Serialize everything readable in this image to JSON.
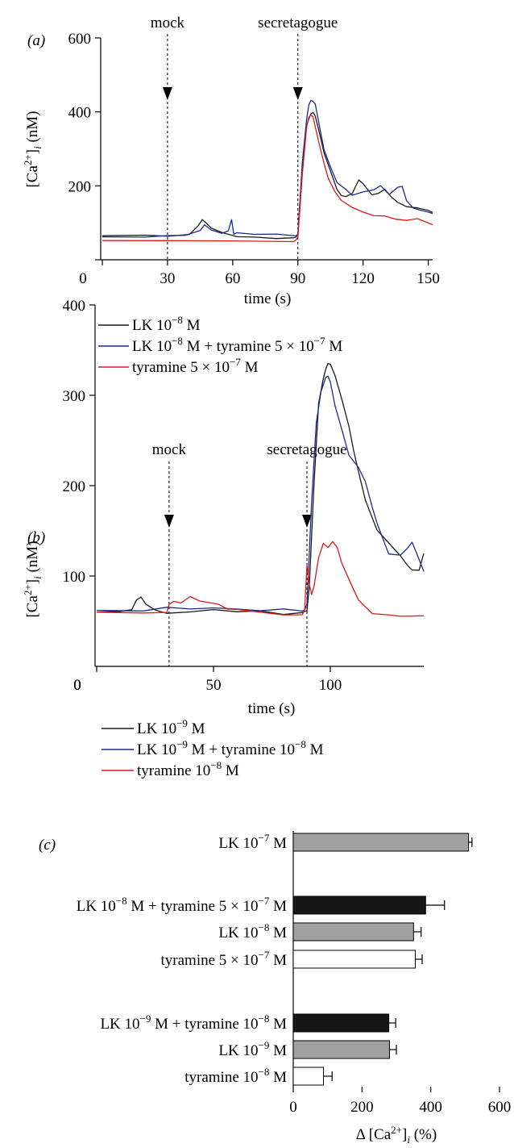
{
  "chart_data": [
    {
      "panel": "(a)",
      "type": "line",
      "xlabel": "time (s)",
      "ylabel_base": "[Ca",
      "ylabel_sup": "2+",
      "ylabel_sub": "i",
      "ylabel_unit": "(nM)",
      "xlim": [
        0,
        152
      ],
      "ylim": [
        0,
        600
      ],
      "xticks": [
        0,
        30,
        60,
        90,
        120,
        150
      ],
      "yticks": [
        0,
        200,
        400,
        600
      ],
      "annotations": [
        {
          "label": "mock",
          "x": 30
        },
        {
          "label": "secretagogue",
          "x": 90
        }
      ],
      "series": [
        {
          "color": "#1a1a1a",
          "legend": {
            "prefix": "LK 10",
            "sup": "−8",
            "suffix": " M"
          },
          "x": [
            0,
            20,
            30,
            40,
            44,
            46,
            48,
            50,
            55,
            58,
            62,
            70,
            80,
            88,
            89,
            90,
            92,
            94,
            95,
            96,
            97,
            98,
            100,
            102,
            105,
            108,
            110,
            112,
            115,
            118,
            120,
            124,
            127,
            130,
            133,
            136,
            140,
            145,
            150,
            152
          ],
          "y": [
            65,
            65,
            65,
            68,
            90,
            108,
            100,
            85,
            75,
            68,
            62,
            60,
            58,
            58,
            60,
            70,
            250,
            360,
            380,
            395,
            400,
            390,
            340,
            290,
            240,
            190,
            175,
            170,
            180,
            215,
            205,
            175,
            180,
            190,
            170,
            155,
            145,
            140,
            132,
            128
          ]
        },
        {
          "color": "#1c2a8f",
          "legend": {
            "prefix": "LK 10",
            "sup": "−8",
            "suffix": " M + tyramine 5 × 10",
            "sup2": "−7",
            "suffix2": " M"
          },
          "x": [
            0,
            20,
            30,
            38,
            45,
            47,
            50,
            55,
            58,
            59.5,
            60.5,
            62,
            70,
            80,
            88,
            89,
            90,
            92,
            94,
            95,
            96,
            97,
            98,
            100,
            102,
            105,
            108,
            112,
            115,
            120,
            125,
            128,
            132,
            136,
            138,
            140,
            143,
            146,
            150,
            152
          ],
          "y": [
            62,
            62,
            64,
            66,
            80,
            95,
            80,
            70,
            80,
            108,
            70,
            72,
            70,
            68,
            66,
            66,
            70,
            260,
            380,
            420,
            432,
            428,
            420,
            360,
            300,
            250,
            210,
            190,
            175,
            185,
            190,
            200,
            178,
            195,
            200,
            160,
            140,
            135,
            130,
            125
          ]
        },
        {
          "color": "#e01818",
          "legend": {
            "prefix": "tyramine 5 × 10",
            "sup": "−7",
            "suffix": " M"
          },
          "x": [
            0,
            30,
            60,
            88,
            89,
            90,
            92,
            94,
            95,
            96,
            97,
            98,
            100,
            102,
            104,
            107,
            110,
            115,
            120,
            125,
            130,
            135,
            140,
            145,
            150,
            152
          ],
          "y": [
            52,
            52,
            50,
            50,
            52,
            60,
            230,
            360,
            385,
            390,
            385,
            360,
            310,
            260,
            220,
            185,
            160,
            140,
            128,
            120,
            120,
            110,
            105,
            110,
            100,
            95
          ]
        }
      ]
    },
    {
      "panel": "(b)",
      "type": "line",
      "xlabel": "time (s)",
      "ylabel_base": "[Ca",
      "ylabel_sup": "2+",
      "ylabel_sub": "i",
      "ylabel_unit": "(nM)",
      "xlim": [
        0,
        140
      ],
      "ylim": [
        0,
        400
      ],
      "xticks": [
        0,
        50,
        100
      ],
      "yticks": [
        100,
        200,
        300,
        400
      ],
      "y_zero_label": "0",
      "annotations": [
        {
          "label": "mock",
          "x": 31
        },
        {
          "label": "secretagogue",
          "x": 90
        }
      ],
      "series": [
        {
          "color": "#1a1a1a",
          "legend": {
            "prefix": "LK 10",
            "sup": "−9",
            "suffix": " M"
          },
          "x": [
            0,
            10,
            15,
            17,
            19,
            21,
            25,
            30,
            40,
            50,
            60,
            70,
            80,
            88,
            89,
            90,
            91,
            93,
            95,
            97,
            98,
            99,
            100,
            102,
            105,
            108,
            110,
            112,
            115,
            120,
            125,
            130,
            133,
            135,
            138,
            140
          ],
          "y": [
            60,
            62,
            62,
            75,
            76,
            68,
            62,
            60,
            60,
            62,
            62,
            60,
            58,
            58,
            60,
            62,
            90,
            200,
            290,
            320,
            330,
            335,
            333,
            322,
            295,
            265,
            240,
            215,
            185,
            150,
            135,
            122,
            112,
            108,
            105,
            125
          ]
        },
        {
          "color": "#1c2a8f",
          "legend": {
            "prefix": "LK 10",
            "sup": "−9",
            "suffix": " M + tyramine 10",
            "sup2": "−8",
            "suffix2": " M"
          },
          "x": [
            0,
            20,
            30,
            40,
            50,
            60,
            70,
            80,
            88,
            89,
            90,
            92,
            94,
            96,
            98,
            99,
            100,
            102,
            105,
            108,
            112,
            115,
            118,
            120,
            125,
            130,
            133,
            135,
            137,
            140
          ],
          "y": [
            62,
            62,
            64,
            65,
            64,
            63,
            63,
            62,
            62,
            64,
            70,
            180,
            270,
            305,
            318,
            320,
            315,
            290,
            260,
            235,
            220,
            205,
            175,
            160,
            125,
            122,
            132,
            136,
            125,
            105
          ]
        },
        {
          "color": "#e01818",
          "legend": {
            "prefix": "tyramine 10",
            "sup": "−8",
            "suffix": " M"
          },
          "x": [
            0,
            20,
            30,
            31,
            33,
            36,
            40,
            44,
            48,
            52,
            56,
            60,
            70,
            80,
            88,
            89,
            90,
            91,
            92,
            93,
            95,
            97,
            99,
            101,
            103,
            105,
            108,
            112,
            118,
            125,
            130,
            140
          ],
          "y": [
            60,
            60,
            60,
            70,
            72,
            70,
            76,
            74,
            70,
            68,
            65,
            62,
            60,
            58,
            58,
            62,
            110,
            90,
            80,
            90,
            120,
            135,
            133,
            138,
            130,
            115,
            95,
            75,
            60,
            58,
            57,
            56
          ]
        }
      ]
    },
    {
      "panel": "(c)",
      "type": "bar",
      "orientation": "horizontal",
      "xlabel_prefix": "Δ [Ca",
      "xlabel_sup": "2+",
      "xlabel_sub": "i",
      "xlabel_unit": " (%)",
      "xlim": [
        0,
        600
      ],
      "xticks": [
        0,
        200,
        400,
        600
      ],
      "categories": [
        {
          "prefix": "LK 10",
          "sup": "−7",
          "suffix": " M"
        },
        {
          "prefix": "LK 10",
          "sup": "−8",
          "suffix": " M + tyramine 5 × 10",
          "sup2": "−7",
          "suffix2": " M"
        },
        {
          "prefix": "LK 10",
          "sup": "−8",
          "suffix": " M"
        },
        {
          "prefix": "tyramine 5 × 10",
          "sup": "−7",
          "suffix": " M"
        },
        {
          "prefix": "LK 10",
          "sup": "−9",
          "suffix": " M + tyramine 10",
          "sup2": "−8",
          "suffix2": " M"
        },
        {
          "prefix": "LK 10",
          "sup": "−9",
          "suffix": " M"
        },
        {
          "prefix": "tyramine 10",
          "sup": "−8",
          "suffix": " M"
        }
      ],
      "values": [
        510,
        385,
        350,
        355,
        278,
        280,
        88
      ],
      "errors": [
        10,
        55,
        22,
        20,
        20,
        20,
        25
      ],
      "fills": [
        "#a0a0a0",
        "#161616",
        "#a0a0a0",
        "#ffffff",
        "#161616",
        "#a0a0a0",
        "#ffffff"
      ]
    }
  ]
}
